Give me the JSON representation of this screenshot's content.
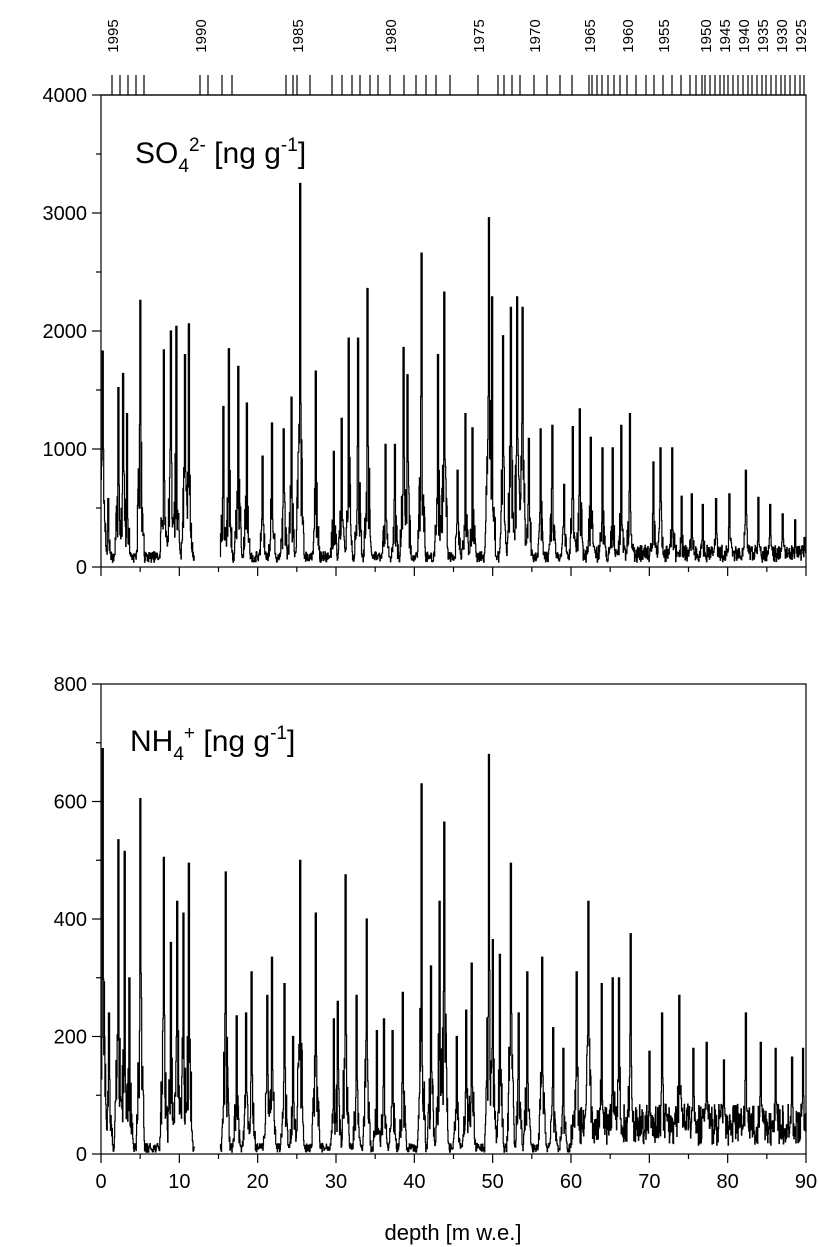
{
  "chart_data": [
    {
      "type": "line",
      "title_main": "SO",
      "title_sub": "4",
      "title_sup": "2-",
      "title_unit": " [ng g",
      "title_unit_sup": "-1",
      "title_unit_end": "]",
      "xlim": [
        0,
        90
      ],
      "ylim": [
        0,
        4000
      ],
      "y_ticks": [
        0,
        1000,
        2000,
        3000,
        4000
      ],
      "y_tick_labels": [
        "0",
        "1000",
        "2000",
        "3000",
        "4000"
      ],
      "top_year_labels": [
        "1995",
        "1990",
        "1985",
        "1980",
        "1975",
        "1970",
        "1965",
        "1960",
        "1955",
        "1950",
        "1945",
        "1940",
        "1935",
        "1930",
        "1925"
      ],
      "peaks": [
        [
          0.2,
          1830
        ],
        [
          0.9,
          580
        ],
        [
          2.2,
          1520
        ],
        [
          2.8,
          1640
        ],
        [
          3.3,
          1300
        ],
        [
          5.0,
          2260
        ],
        [
          8.0,
          1840
        ],
        [
          8.9,
          2000
        ],
        [
          9.6,
          2040
        ],
        [
          10.7,
          1800
        ],
        [
          11.2,
          2060
        ],
        [
          15.6,
          1360
        ],
        [
          16.3,
          1850
        ],
        [
          17.5,
          1700
        ],
        [
          18.6,
          1390
        ],
        [
          20.6,
          940
        ],
        [
          21.8,
          1220
        ],
        [
          23.3,
          1170
        ],
        [
          24.3,
          1440
        ],
        [
          25.4,
          3250
        ],
        [
          27.4,
          1660
        ],
        [
          29.7,
          980
        ],
        [
          30.7,
          1260
        ],
        [
          31.6,
          1940
        ],
        [
          32.8,
          1940
        ],
        [
          34.0,
          2360
        ],
        [
          36.3,
          1040
        ],
        [
          37.5,
          1040
        ],
        [
          38.6,
          1860
        ],
        [
          39.1,
          1630
        ],
        [
          40.9,
          2660
        ],
        [
          43.0,
          1800
        ],
        [
          43.8,
          2330
        ],
        [
          45.5,
          820
        ],
        [
          46.5,
          1300
        ],
        [
          47.4,
          1180
        ],
        [
          49.5,
          2960
        ],
        [
          49.9,
          2290
        ],
        [
          51.3,
          1960
        ],
        [
          52.3,
          2200
        ],
        [
          53.1,
          2290
        ],
        [
          53.8,
          2200
        ],
        [
          54.6,
          1090
        ],
        [
          56.1,
          1170
        ],
        [
          57.6,
          1200
        ],
        [
          59.1,
          700
        ],
        [
          60.2,
          1190
        ],
        [
          61.1,
          1340
        ],
        [
          62.5,
          1100
        ],
        [
          64.0,
          1010
        ],
        [
          65.3,
          1010
        ],
        [
          66.4,
          1200
        ],
        [
          67.5,
          1300
        ],
        [
          70.5,
          890
        ],
        [
          71.4,
          1010
        ],
        [
          72.9,
          1010
        ],
        [
          74.1,
          600
        ],
        [
          75.4,
          620
        ],
        [
          76.8,
          530
        ],
        [
          78.5,
          580
        ],
        [
          80.2,
          620
        ],
        [
          82.3,
          820
        ],
        [
          83.9,
          590
        ],
        [
          85.4,
          530
        ],
        [
          87.0,
          450
        ],
        [
          88.6,
          400
        ],
        [
          89.8,
          250
        ]
      ]
    },
    {
      "type": "line",
      "title_main": "NH",
      "title_sub": "4",
      "title_sup": "+",
      "title_unit": " [ng g",
      "title_unit_sup": "-1",
      "title_unit_end": "]",
      "xlabel": "depth [m w.e.]",
      "xlim": [
        0,
        90
      ],
      "ylim": [
        0,
        800
      ],
      "x_ticks": [
        0,
        10,
        20,
        30,
        40,
        50,
        60,
        70,
        80,
        90
      ],
      "x_tick_labels": [
        "0",
        "10",
        "20",
        "30",
        "40",
        "50",
        "60",
        "70",
        "80",
        "90"
      ],
      "y_ticks": [
        0,
        200,
        400,
        600,
        800
      ],
      "y_tick_labels": [
        "0",
        "200",
        "400",
        "600",
        "800"
      ],
      "peaks": [
        [
          0.2,
          690
        ],
        [
          1.0,
          240
        ],
        [
          2.2,
          535
        ],
        [
          3.0,
          515
        ],
        [
          3.6,
          300
        ],
        [
          5.0,
          605
        ],
        [
          8.0,
          505
        ],
        [
          8.9,
          360
        ],
        [
          9.7,
          430
        ],
        [
          10.5,
          410
        ],
        [
          11.2,
          495
        ],
        [
          15.9,
          480
        ],
        [
          17.3,
          235
        ],
        [
          18.5,
          240
        ],
        [
          19.2,
          310
        ],
        [
          21.2,
          270
        ],
        [
          21.8,
          335
        ],
        [
          23.4,
          290
        ],
        [
          24.5,
          200
        ],
        [
          25.4,
          500
        ],
        [
          27.4,
          410
        ],
        [
          29.7,
          230
        ],
        [
          30.2,
          260
        ],
        [
          31.2,
          475
        ],
        [
          32.6,
          270
        ],
        [
          33.9,
          400
        ],
        [
          35.2,
          210
        ],
        [
          36.1,
          230
        ],
        [
          37.2,
          210
        ],
        [
          38.5,
          275
        ],
        [
          40.9,
          630
        ],
        [
          42.1,
          320
        ],
        [
          43.2,
          430
        ],
        [
          43.8,
          565
        ],
        [
          45.4,
          200
        ],
        [
          46.6,
          245
        ],
        [
          47.3,
          325
        ],
        [
          49.5,
          680
        ],
        [
          50.0,
          365
        ],
        [
          50.9,
          340
        ],
        [
          52.3,
          495
        ],
        [
          53.3,
          240
        ],
        [
          54.4,
          310
        ],
        [
          56.3,
          335
        ],
        [
          57.7,
          215
        ],
        [
          59.0,
          180
        ],
        [
          60.7,
          310
        ],
        [
          62.2,
          430
        ],
        [
          63.9,
          290
        ],
        [
          65.3,
          300
        ],
        [
          66.1,
          300
        ],
        [
          67.6,
          375
        ],
        [
          70.0,
          175
        ],
        [
          71.6,
          240
        ],
        [
          73.8,
          270
        ],
        [
          75.6,
          180
        ],
        [
          77.3,
          190
        ],
        [
          79.5,
          160
        ],
        [
          82.3,
          240
        ],
        [
          84.2,
          190
        ],
        [
          86.1,
          180
        ],
        [
          88.2,
          165
        ],
        [
          89.6,
          180
        ]
      ]
    }
  ]
}
